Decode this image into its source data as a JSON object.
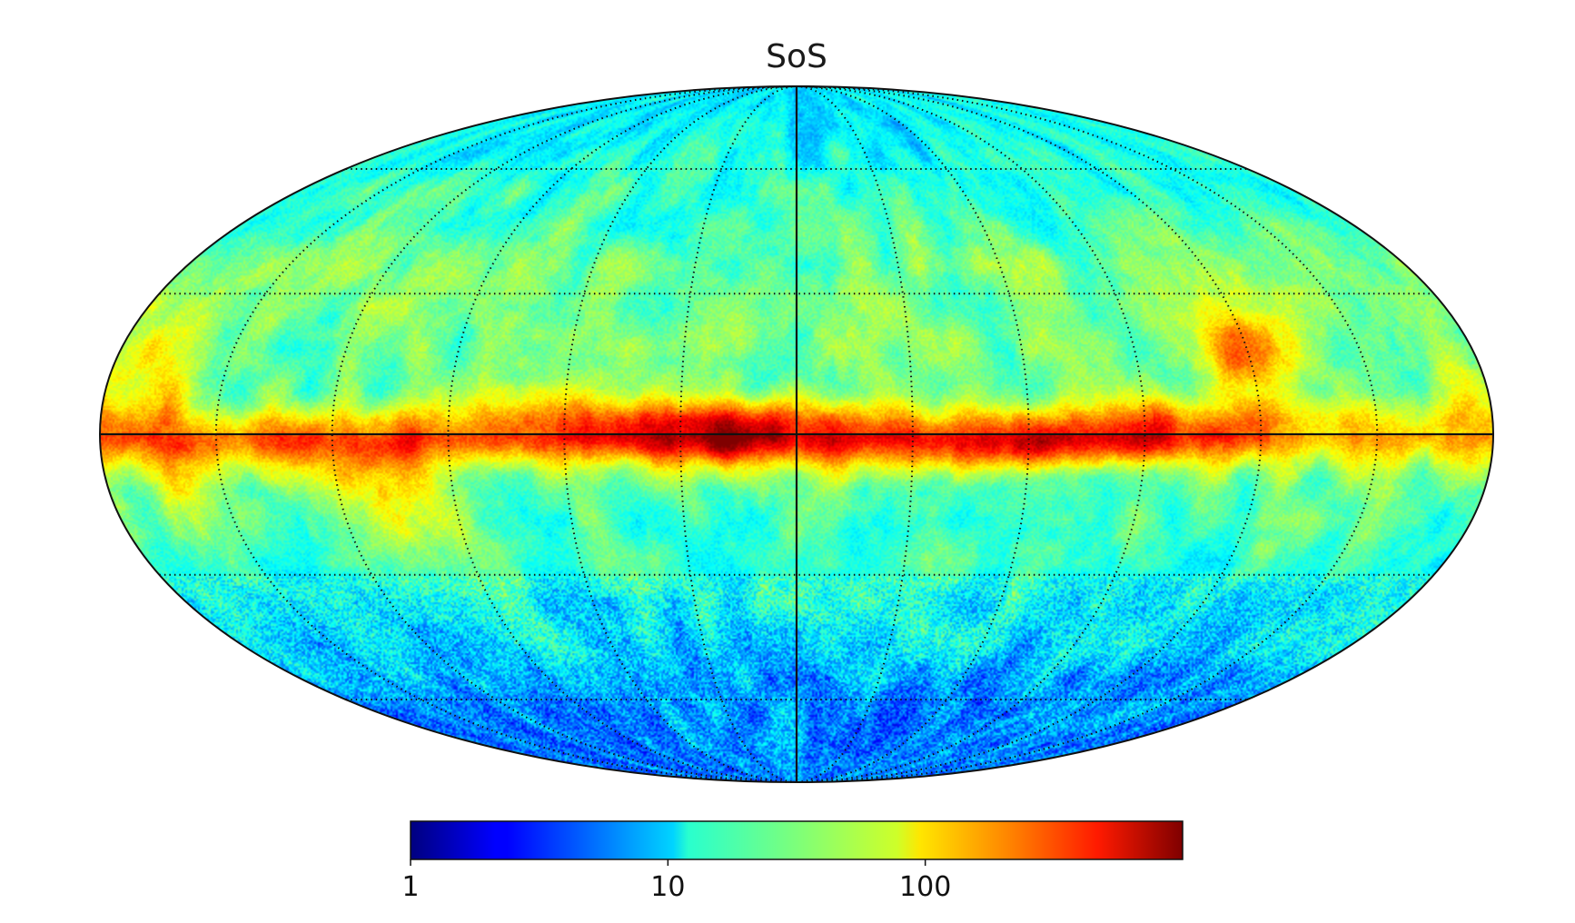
{
  "chart_data": {
    "type": "heatmap",
    "projection": "mollweide",
    "title": "SoS",
    "colormap": "jet",
    "scale": "log",
    "colorbar": {
      "orientation": "horizontal",
      "placement": "bottom",
      "range": [
        1,
        1000
      ],
      "tick_values": [
        1,
        10,
        100
      ],
      "tick_labels": [
        "1",
        "10",
        "100"
      ]
    },
    "graticule": {
      "meridian_step_deg": 30,
      "parallel_step_deg": 30,
      "central_lines": "solid",
      "other_lines": "dotted"
    },
    "map_features": {
      "galactic_plane_peak": 700,
      "pole_level": 5,
      "high_latitude_level": 15,
      "mid_latitude_level": 30
    }
  }
}
